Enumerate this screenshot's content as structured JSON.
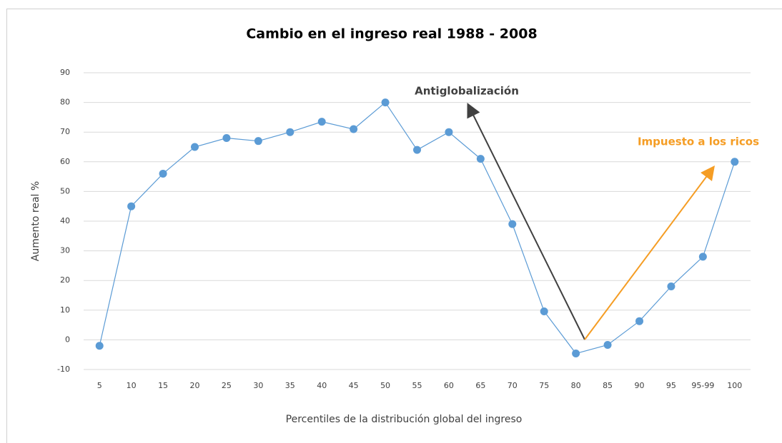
{
  "chart_data": {
    "type": "line",
    "title": "Cambio en el ingreso real 1988 - 2008",
    "x_label": "Percentiles de la distribución global del ingreso",
    "y_label": "Aumento real %",
    "categories": [
      "5",
      "10",
      "15",
      "20",
      "25",
      "30",
      "35",
      "40",
      "45",
      "50",
      "55",
      "60",
      "65",
      "70",
      "75",
      "80",
      "85",
      "90",
      "95",
      "95-99",
      "100"
    ],
    "series": [
      {
        "name": "Aumento real %",
        "color": "#5b9bd5",
        "values": [
          -2,
          45,
          56,
          65,
          68,
          67,
          70,
          73.5,
          71,
          80,
          64,
          70,
          61,
          39,
          9.6,
          -4.6,
          -1.7,
          6.3,
          18,
          28,
          60
        ]
      }
    ],
    "ylim": [
      -10,
      90
    ],
    "yticks": [
      -10,
      0,
      10,
      20,
      30,
      40,
      50,
      60,
      70,
      80,
      90
    ],
    "grid": true,
    "annotations": [
      {
        "text": "Antiglobalización",
        "color": "#404040"
      },
      {
        "text": "Impuesto a los ricos",
        "color": "#f59d24"
      }
    ]
  }
}
